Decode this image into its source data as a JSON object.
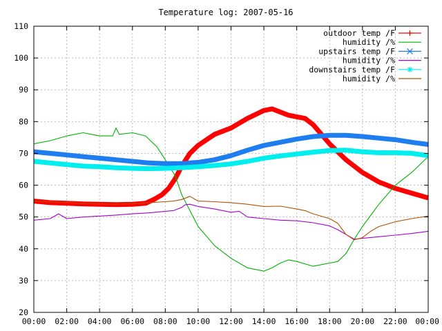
{
  "colors": {
    "outdoor_temp": "#ff0000",
    "outdoor_humidity": "#00b000",
    "upstairs_temp": "#1e7ef0",
    "upstairs_humidity": "#a000d0",
    "downstairs_temp": "#00eeee",
    "downstairs_humidity": "#b05000"
  },
  "chart_data": {
    "type": "line",
    "title": "Temperature log: 2007-05-16",
    "xlabel": "",
    "ylabel": "",
    "xlim": [
      0,
      24
    ],
    "ylim": [
      20,
      110
    ],
    "grid": true,
    "legend_position": "top-right",
    "x_ticks": [
      {
        "value": 0,
        "label": "00:00"
      },
      {
        "value": 2,
        "label": "02:00"
      },
      {
        "value": 4,
        "label": "04:00"
      },
      {
        "value": 6,
        "label": "06:00"
      },
      {
        "value": 8,
        "label": "08:00"
      },
      {
        "value": 10,
        "label": "10:00"
      },
      {
        "value": 12,
        "label": "12:00"
      },
      {
        "value": 14,
        "label": "14:00"
      },
      {
        "value": 16,
        "label": "16:00"
      },
      {
        "value": 18,
        "label": "18:00"
      },
      {
        "value": 20,
        "label": "20:00"
      },
      {
        "value": 22,
        "label": "22:00"
      },
      {
        "value": 24,
        "label": "00:00"
      }
    ],
    "y_ticks": [
      {
        "value": 20,
        "label": "20"
      },
      {
        "value": 30,
        "label": "30"
      },
      {
        "value": 40,
        "label": "40"
      },
      {
        "value": 50,
        "label": "50"
      },
      {
        "value": 60,
        "label": "60"
      },
      {
        "value": 70,
        "label": "70"
      },
      {
        "value": 80,
        "label": "80"
      },
      {
        "value": 90,
        "label": "90"
      },
      {
        "value": 100,
        "label": "100"
      },
      {
        "value": 110,
        "label": "110"
      }
    ],
    "series": [
      {
        "name": "outdoor temp /F",
        "key": "outdoor_temp",
        "marker": "plus",
        "thick": true,
        "x": [
          0,
          1,
          2,
          3,
          4,
          5,
          6,
          6.8,
          7.3,
          7.8,
          8.2,
          8.6,
          9,
          9.5,
          10,
          11,
          12,
          13,
          14,
          14.5,
          15,
          15.5,
          16,
          16.5,
          17,
          17.5,
          18,
          19,
          20,
          21,
          22,
          23,
          24
        ],
        "y": [
          55,
          54.5,
          54.3,
          54.1,
          54,
          53.9,
          54,
          54.3,
          55.5,
          57,
          59,
          62,
          66,
          70,
          72.5,
          76,
          78,
          81,
          83.5,
          84,
          83,
          82,
          81.5,
          81,
          79,
          76,
          73,
          68,
          64,
          61,
          59,
          57.5,
          56
        ]
      },
      {
        "name": "humidity /%",
        "key": "outdoor_humidity",
        "marker": "none",
        "x": [
          0,
          1,
          2,
          3,
          4,
          4.8,
          5,
          5.2,
          6,
          6.8,
          7.5,
          8,
          8.6,
          9,
          9.5,
          10,
          11,
          12,
          13,
          14,
          14.5,
          15,
          15.5,
          16,
          17,
          18,
          18.5,
          19,
          19.5,
          20,
          21,
          22,
          23,
          24
        ],
        "y": [
          73,
          74,
          75.5,
          76.5,
          75.5,
          75.5,
          78,
          76,
          76.5,
          75.5,
          72,
          68,
          63,
          57,
          52,
          47,
          41,
          37,
          34,
          33,
          34,
          35.5,
          36.5,
          36,
          34.5,
          35.5,
          36,
          38.5,
          43,
          47,
          54,
          60,
          64,
          69
        ]
      },
      {
        "name": "upstairs temp /F",
        "key": "upstairs_temp",
        "marker": "x",
        "thick": true,
        "x": [
          0,
          1,
          2,
          3,
          4,
          5,
          6,
          7,
          8,
          9,
          10,
          11,
          12,
          13,
          14,
          15,
          16,
          17,
          18,
          19,
          20,
          21,
          22,
          23,
          24
        ],
        "y": [
          70.5,
          70,
          69.5,
          69,
          68.5,
          68,
          67.5,
          67,
          66.8,
          66.8,
          67.2,
          68,
          69.3,
          71,
          72.5,
          73.5,
          74.5,
          75.3,
          75.7,
          75.7,
          75.3,
          74.8,
          74.3,
          73.5,
          72.8
        ]
      },
      {
        "name": "humidity /%",
        "key": "upstairs_humidity",
        "marker": "none",
        "x": [
          0,
          1,
          1.5,
          2,
          3,
          4,
          5,
          6,
          7,
          8,
          8.5,
          9,
          9.2,
          9.5,
          10,
          11,
          12,
          12.5,
          13,
          14,
          15,
          16,
          17,
          18,
          18.5,
          19,
          19.5,
          20,
          21,
          22,
          23,
          24
        ],
        "y": [
          49,
          49.5,
          51,
          49.5,
          50,
          50.3,
          50.6,
          51,
          51.3,
          51.8,
          52,
          53,
          53.8,
          54,
          53.3,
          52.5,
          51.5,
          51.8,
          50,
          49.5,
          49,
          48.8,
          48.2,
          47.2,
          46,
          44.5,
          43,
          43.3,
          43.8,
          44.3,
          44.8,
          45.5
        ]
      },
      {
        "name": "downstairs temp /F",
        "key": "downstairs_temp",
        "marker": "star",
        "thick": true,
        "x": [
          0,
          1,
          2,
          3,
          4,
          5,
          6,
          7,
          8,
          9,
          10,
          11,
          12,
          13,
          14,
          15,
          16,
          17,
          18,
          19,
          20,
          21,
          22,
          23,
          24
        ],
        "y": [
          67.5,
          67,
          66.5,
          66,
          65.8,
          65.5,
          65.3,
          65.2,
          65.3,
          65.5,
          65.8,
          66.2,
          66.7,
          67.5,
          68.5,
          69.2,
          69.8,
          70.4,
          70.9,
          71,
          70.5,
          70.2,
          70.2,
          70,
          69.3
        ]
      },
      {
        "name": "humidity /%",
        "key": "downstairs_humidity",
        "marker": "none",
        "x": [
          0,
          1,
          2,
          3,
          4,
          5,
          6,
          7,
          8,
          8.5,
          9,
          9.5,
          10,
          11,
          12,
          13,
          14,
          15,
          16,
          16.5,
          17,
          18,
          18.5,
          19,
          19.5,
          20,
          20.5,
          21,
          22,
          23,
          24
        ],
        "y": [
          55,
          54.8,
          54.6,
          54.3,
          54.1,
          54,
          54.2,
          54.5,
          54.8,
          55,
          55.5,
          56.5,
          55,
          54.8,
          54.5,
          54,
          53.3,
          53.4,
          52.5,
          52,
          51,
          49.5,
          48,
          44.5,
          42.8,
          43.5,
          45.5,
          47,
          48.5,
          49.5,
          50.3
        ]
      }
    ]
  }
}
